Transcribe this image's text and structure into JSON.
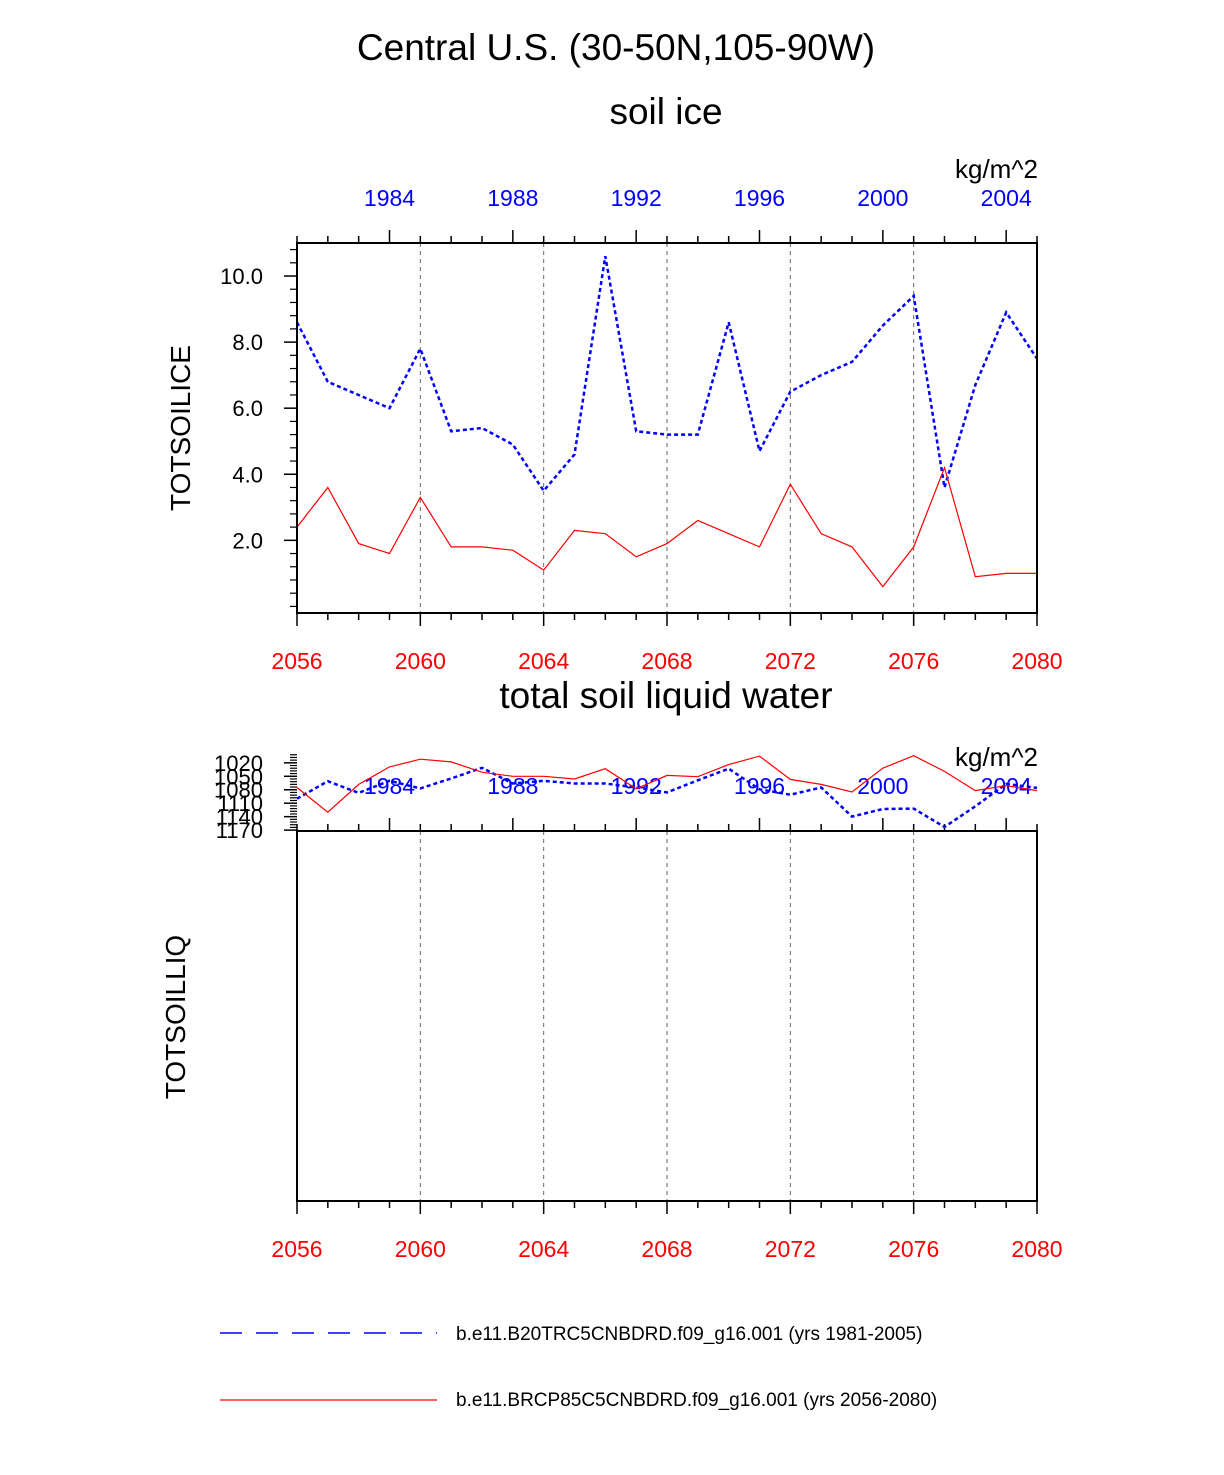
{
  "main_title": "Central U.S. (30-50N,105-90W)",
  "units": "kg/m^2",
  "colors": {
    "historical": "#0000ff",
    "future": "#ff0000",
    "axis": "#000000",
    "grid": "#666666"
  },
  "legend": {
    "historical": "b.e11.B20TRC5CNBDRD.f09_g16.001 (yrs 1981-2005)",
    "future": "b.e11.BRCP85C5CNBDRD.f09_g16.001 (yrs 2056-2080)"
  },
  "chart_data": [
    {
      "type": "line",
      "title": "soil ice",
      "ylabel": "TOTSOILICE",
      "units": "kg/m^2",
      "ylim": [
        -0.2,
        11.0
      ],
      "yticks": [
        2.0,
        4.0,
        6.0,
        8.0,
        10.0
      ],
      "ytick_labels": [
        "2.0",
        "4.0",
        "6.0",
        "8.0",
        "10.0"
      ],
      "yminor": [
        0,
        0.4,
        0.8,
        1.2,
        1.6,
        2.4,
        2.8,
        3.2,
        3.6,
        4.4,
        4.8,
        5.2,
        5.6,
        6.4,
        6.8,
        7.2,
        7.6,
        8.4,
        8.8,
        9.2,
        9.6,
        10.4,
        10.8
      ],
      "x_bottom": {
        "range": [
          2056,
          2080
        ],
        "ticks": [
          2056,
          2060,
          2064,
          2068,
          2072,
          2076,
          2080
        ],
        "labels": [
          "2056",
          "2060",
          "2064",
          "2068",
          "2072",
          "2076",
          "2080"
        ]
      },
      "x_top": {
        "range": [
          1981,
          2005
        ],
        "ticks": [
          1984,
          1988,
          1992,
          1996,
          2000,
          2004
        ],
        "labels": [
          "1984",
          "1988",
          "1992",
          "1996",
          "2000",
          "2004"
        ]
      },
      "grid_x": [
        2060,
        2064,
        2068,
        2072,
        2076
      ],
      "series": [
        {
          "name": "b.e11.B20TRC5CNBDRD.f09_g16.001 (yrs 1981-2005)",
          "style": "dashed",
          "color": "#0000ff",
          "values": [
            8.6,
            6.8,
            6.4,
            6.0,
            7.8,
            5.3,
            5.4,
            4.9,
            3.5,
            4.6,
            10.6,
            5.3,
            5.2,
            5.2,
            8.6,
            4.7,
            6.5,
            7.0,
            7.4,
            8.5,
            9.4,
            3.6,
            6.7,
            8.9,
            7.5
          ]
        },
        {
          "name": "b.e11.BRCP85C5CNBDRD.f09_g16.001 (yrs 2056-2080)",
          "style": "solid",
          "color": "#ff0000",
          "values": [
            2.4,
            3.6,
            1.9,
            1.6,
            3.3,
            1.8,
            1.8,
            1.7,
            1.1,
            2.3,
            2.2,
            1.5,
            1.9,
            2.6,
            2.2,
            1.8,
            3.7,
            2.2,
            1.8,
            0.6,
            1.8,
            4.2,
            0.9,
            1.0,
            1.0
          ]
        }
      ]
    },
    {
      "type": "line",
      "title": "total soil liquid water",
      "ylabel": "TOTSOILLIQ",
      "units": "kg/m^2",
      "ylim": [
        1997,
        1172
      ],
      "yticks": [
        1020,
        1050,
        1080,
        1110,
        1140,
        1170
      ],
      "ytick_labels": [
        "1020",
        "1050",
        "1080",
        "1110",
        "1140",
        "1170"
      ],
      "yminor": [
        1002,
        1008,
        1014,
        1026,
        1032,
        1038,
        1044,
        1056,
        1062,
        1068,
        1074,
        1086,
        1092,
        1098,
        1104,
        1116,
        1122,
        1128,
        1134,
        1146,
        1152,
        1158,
        1164
      ],
      "x_bottom": {
        "range": [
          2056,
          2080
        ],
        "ticks": [
          2056,
          2060,
          2064,
          2068,
          2072,
          2076,
          2080
        ],
        "labels": [
          "2056",
          "2060",
          "2064",
          "2068",
          "2072",
          "2076",
          "2080"
        ]
      },
      "x_top": {
        "range": [
          1981,
          2005
        ],
        "ticks": [
          1984,
          1988,
          1992,
          1996,
          2000,
          2004
        ],
        "labels": [
          "1984",
          "1988",
          "1992",
          "1996",
          "2000",
          "2004"
        ]
      },
      "grid_x": [
        2060,
        2064,
        2068,
        2072,
        2076
      ],
      "series": [
        {
          "name": "b.e11.B20TRC5CNBDRD.f09_g16.001 (yrs 1981-2005)",
          "style": "dashed",
          "color": "#0000ff",
          "values": [
            1100,
            1061,
            1087,
            1060,
            1077,
            1055,
            1031,
            1066,
            1060,
            1066,
            1066,
            1075,
            1086,
            1059,
            1033,
            1079,
            1091,
            1075,
            1140,
            1123,
            1122,
            1163,
            1117,
            1067,
            1076
          ]
        },
        {
          "name": "b.e11.BRCP85C5CNBDRD.f09_g16.001 (yrs 2056-2080)",
          "style": "solid",
          "color": "#ff0000",
          "values": [
            1075,
            1130,
            1068,
            1029,
            1012,
            1018,
            1041,
            1050,
            1050,
            1056,
            1033,
            1078,
            1048,
            1051,
            1024,
            1005,
            1057,
            1068,
            1085,
            1032,
            1004,
            1039,
            1082,
            1071,
            1082
          ]
        }
      ]
    }
  ]
}
